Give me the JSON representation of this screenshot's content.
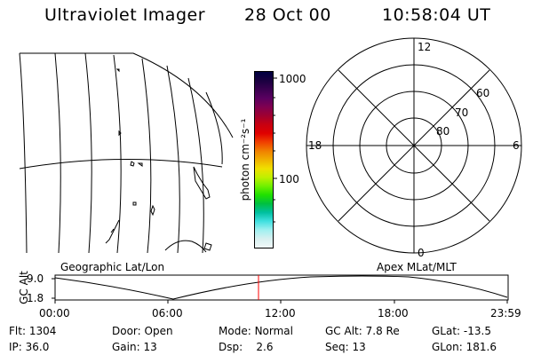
{
  "header": {
    "instrument": "Ultraviolet Imager",
    "date": "28 Oct 00",
    "time": "10:58:04 UT"
  },
  "geo_panel": {
    "label": "Geographic Lat/Lon"
  },
  "colorbar": {
    "unit_label": "photon cm⁻²s⁻¹",
    "ticks": [
      {
        "label": "1000"
      },
      {
        "label": "100"
      }
    ],
    "colors": [
      "#000040",
      "#1a0040",
      "#3a0050",
      "#5a0060",
      "#800050",
      "#a00030",
      "#c80010",
      "#e00000",
      "#f04000",
      "#f08000",
      "#f0b000",
      "#f0e000",
      "#c0f000",
      "#70f000",
      "#20e000",
      "#00c040",
      "#00c0a0",
      "#40e0e0",
      "#a0f0f0",
      "#d8f0f0",
      "#f0f8f8"
    ]
  },
  "polar_panel": {
    "label": "Apex MLat/MLT",
    "mlt_labels": {
      "top": "12",
      "left": "18",
      "right": "6",
      "bottom": "0"
    },
    "lat_labels": [
      "60",
      "70",
      "80"
    ]
  },
  "altitude_plot": {
    "ylabel": "GC Alt",
    "yticks": [
      "9.0",
      "1.8"
    ],
    "xticks": [
      "00:00",
      "06:00",
      "12:00",
      "18:00",
      "23:59"
    ],
    "current_time_marker": "10:58:04",
    "marker_color": "#ff0000"
  },
  "info": {
    "flt": {
      "label": "Flt:",
      "value": "1304"
    },
    "ip": {
      "label": "IP:",
      "value": "36.0"
    },
    "door": {
      "label": "Door:",
      "value": "Open"
    },
    "gain": {
      "label": "Gain:",
      "value": "13"
    },
    "mode": {
      "label": "Mode:",
      "value": "Normal"
    },
    "dsp": {
      "label": "Dsp:",
      "value": "2.6"
    },
    "gcalt": {
      "label": "GC Alt:",
      "value": "7.8 Re"
    },
    "seq": {
      "label": "Seq:",
      "value": "13"
    },
    "glat": {
      "label": "GLat:",
      "value": "-13.5"
    },
    "glon": {
      "label": "GLon:",
      "value": "181.6"
    }
  }
}
